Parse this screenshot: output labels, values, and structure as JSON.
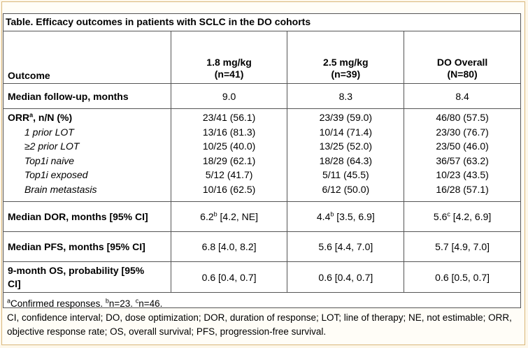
{
  "title": "Table. Efficacy outcomes in patients with SCLC in the DO cohorts",
  "header": {
    "outcome": "Outcome",
    "col1_line1": "1.8 mg/kg",
    "col1_line2": "(n=41)",
    "col2_line1": "2.5 mg/kg",
    "col2_line2": "(n=39)",
    "col3_line1": "DO Overall",
    "col3_line2": "(N=80)"
  },
  "followup": {
    "label": "Median follow-up, months",
    "v1": "9.0",
    "v2": "8.3",
    "v3": "8.4"
  },
  "orr": {
    "label_pre": "ORR",
    "label_sup": "a",
    "label_post": ", n/N (%)",
    "v1": "23/41 (56.1)",
    "v2": "23/39 (59.0)",
    "v3": "46/80 (57.5)",
    "subgroups": [
      {
        "label": "1 prior LOT",
        "v1": "13/16 (81.3)",
        "v2": "10/14 (71.4)",
        "v3": "23/30 (76.7)"
      },
      {
        "label": "≥2 prior LOT",
        "v1": "10/25 (40.0)",
        "v2": "13/25 (52.0)",
        "v3": "23/50 (46.0)"
      },
      {
        "label": "Top1i naive",
        "v1": "18/29 (62.1)",
        "v2": "18/28 (64.3)",
        "v3": "36/57 (63.2)"
      },
      {
        "label": "Top1i exposed",
        "v1": "5/12 (41.7)",
        "v2": "5/11 (45.5)",
        "v3": "10/23 (43.5)"
      },
      {
        "label": "Brain metastasis",
        "v1": "10/16 (62.5)",
        "v2": "6/12 (50.0)",
        "v3": "16/28 (57.1)"
      }
    ]
  },
  "dor": {
    "label": "Median DOR, months [95% CI]",
    "v1_main": "6.2",
    "v1_sup": "b",
    "v1_ci": " [4.2, NE]",
    "v2_main": "4.4",
    "v2_sup": "b",
    "v2_ci": " [3.5, 6.9]",
    "v3_main": "5.6",
    "v3_sup": "c",
    "v3_ci": " [4.2, 6.9]"
  },
  "pfs": {
    "label": "Median PFS, months [95% CI]",
    "v1": "6.8 [4.0, 8.2]",
    "v2": "5.6 [4.4, 7.0]",
    "v3": "5.7 [4.9, 7.0]"
  },
  "os": {
    "label_line1": "9-month OS, probability [95%",
    "label_line2": "CI]",
    "v1": "0.6 [0.4, 0.7]",
    "v2": "0.6 [0.4, 0.7]",
    "v3": "0.6 [0.5, 0.7]"
  },
  "footnotes": {
    "a_sup": "a",
    "a_text": "Confirmed responses. ",
    "b_sup": "b",
    "b_text": "n=23. ",
    "c_sup": "c",
    "c_text": "n=46.",
    "abbrev": "CI, confidence interval; DO, dose optimization; DOR, duration of response; LOT; line of therapy; NE, not estimable; ORR, objective response rate; OS, overall survival; PFS, progression-free survival."
  }
}
